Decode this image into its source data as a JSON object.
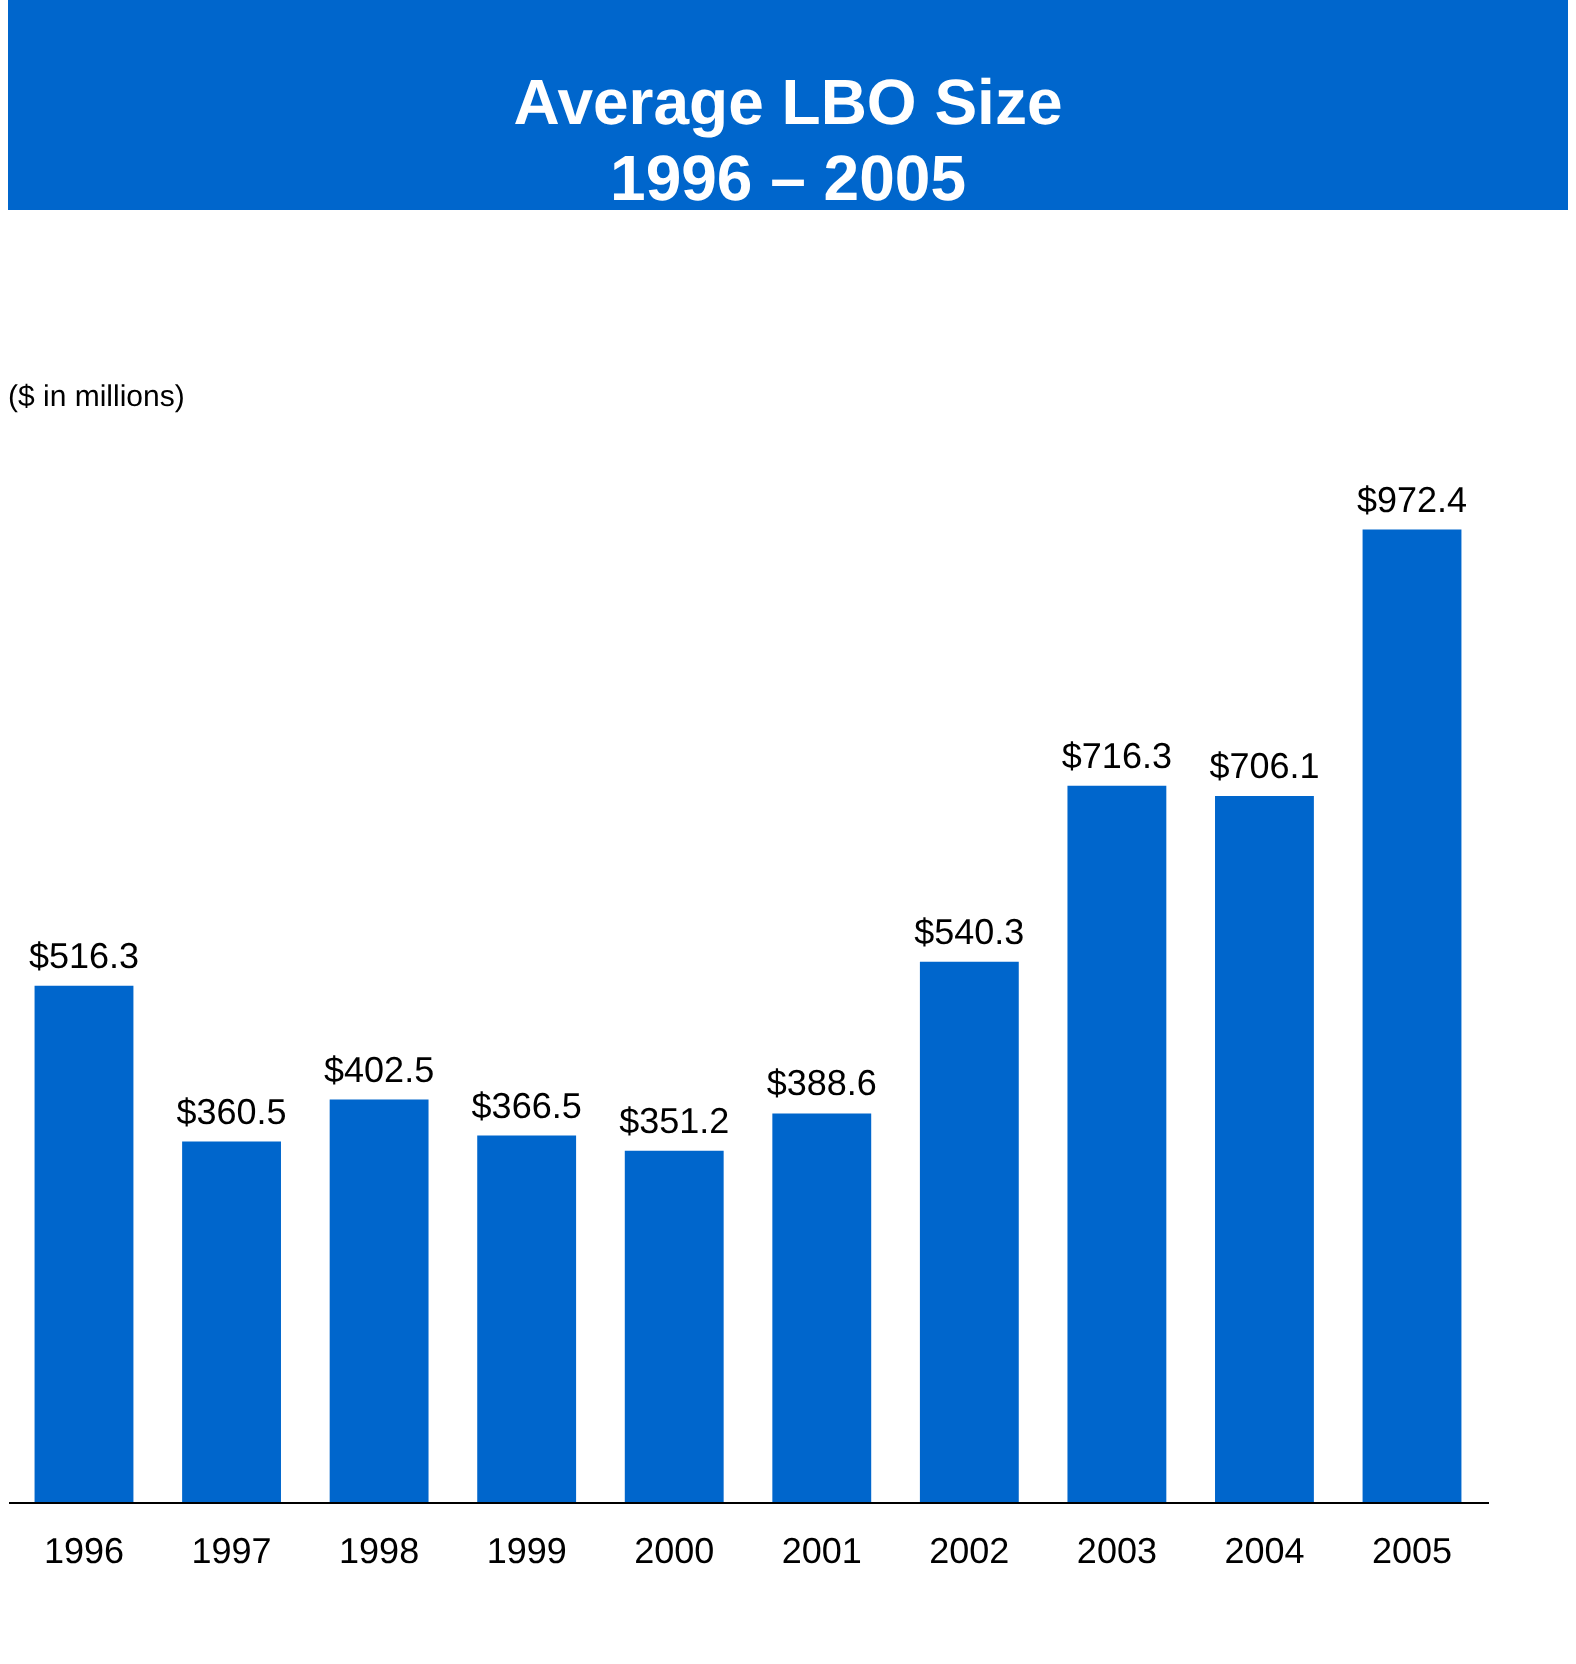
{
  "chart_data": {
    "type": "bar",
    "title": "Average LBO Size\n1996 – 2005",
    "subtitle": "($ in millions)",
    "categories": [
      "1996",
      "1997",
      "1998",
      "1999",
      "2000",
      "2001",
      "2002",
      "2003",
      "2004",
      "2005"
    ],
    "values": [
      516.3,
      360.5,
      402.5,
      366.5,
      351.2,
      388.6,
      540.3,
      716.3,
      706.1,
      972.4
    ],
    "value_labels": [
      "$516.3",
      "$360.5",
      "$402.5",
      "$366.5",
      "$351.2",
      "$388.6",
      "$540.3",
      "$716.3",
      "$706.1",
      "$972.4"
    ],
    "color": "#0066cc",
    "tick_labels": "x",
    "grid": false
  }
}
